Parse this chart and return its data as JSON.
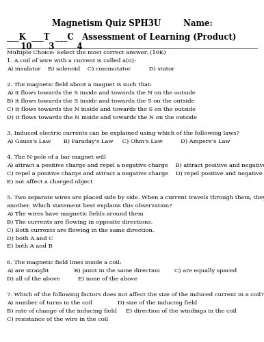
{
  "background_color": "#ffffff",
  "text_color": "#000000",
  "title": "Magnetism Quiz SPH3U        Name:",
  "title_fontsize": 8.5,
  "subtitle": "___K  ___T  ___C   Assessment of Learning (Product)",
  "subtitle_nums": "  10      3        4",
  "subtitle_fontsize": 8.5,
  "body_fontsize": 6.0,
  "lines": [
    "Multiple Choice: Select the most correct answer. (10K)",
    "1. A coil of wire with a current is called a(n):",
    "A) insulator    B) solenoid    C) commutator          D) stator",
    "",
    "2. The magnetic field about a magnet is such that:",
    "A) it flows towards the S inside and towards the N on the outside",
    "B) it flows towards the S inside and towards the S on the outside",
    "C) it flows towards the N inside and towards the S on the outside",
    "D) it flows towards the N inside and towards the N on the outside",
    "",
    "3. Induced electric currents can be explained using which of the following laws?",
    "A) Gauss's Law       B) Faraday's Law     C) Ohm's Law          D) Ampere's Law",
    "",
    "4. The N-pole of a bar magnet will",
    "A) attract a positive charge and repel a negative charge    B) attract positive and negative charges",
    "C) repel a positive charge and attract a negative charge    D) repel positive and negative charges",
    "E) not affect a charged object",
    "",
    "5. Two separate wires are placed side by side. When a current travels through them, they repel one",
    "another. Which statement best explains this observation?",
    "A) The wires have magnetic fields around them",
    "B) The currents are flowing in opposite directions.",
    "C) Both currents are flowing in the same direction.",
    "D) both A and C",
    "E) both A and B",
    "",
    "6. The magnetic field lines inside a coil:",
    "A) are straight              B) point in the same direction        C) are equally spaced",
    "D) all of the above          E) none of the above",
    "",
    "7. Which of the following factors does not affect the size of the induced current in a coil?",
    "A) number of turns in the coil              D) size of the inducing field",
    "B) rate of change of the inducing field     E) direction of the windings in the coil",
    "C) resistance of the wire in the coil"
  ]
}
